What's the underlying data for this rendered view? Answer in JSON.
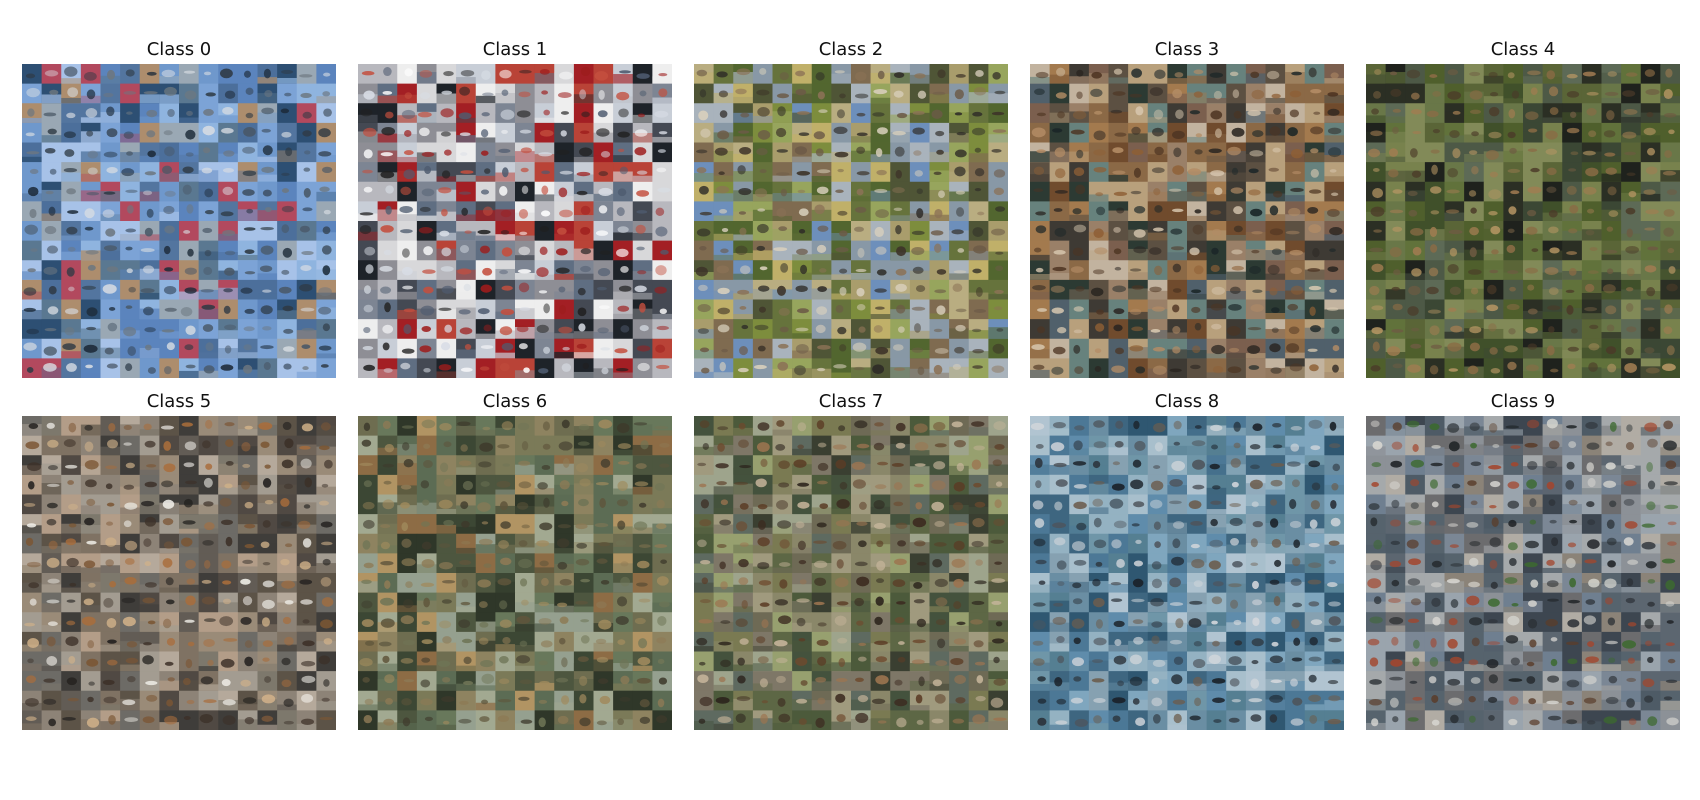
{
  "figure": {
    "panels": [
      {
        "title": "Class 0",
        "palette": [
          "#5b84bd",
          "#6f98cc",
          "#8fb4df",
          "#9aa8b4",
          "#4c6f9b",
          "#7ca3d6",
          "#5a7891",
          "#a7c2e8",
          "#53759f",
          "#2d4f73",
          "#ad8d6d",
          "#b2495e"
        ],
        "subject_palette": [
          "#1d2b39",
          "#2f3a44",
          "#d7dce2",
          "#495867",
          "#6d7780"
        ]
      },
      {
        "title": "Class 1",
        "palette": [
          "#d8d8da",
          "#eeeeee",
          "#b8b8be",
          "#8e8e95",
          "#5f6e82",
          "#a31f24",
          "#444953",
          "#b94337",
          "#c8ced7",
          "#1e2329",
          "#7d8593"
        ],
        "subject_palette": [
          "#ffffff",
          "#202020",
          "#9d1c1c",
          "#4f5c70",
          "#c44f3e",
          "#d8dde5"
        ]
      },
      {
        "title": "Class 2",
        "palette": [
          "#7d8d3d",
          "#97a55d",
          "#8898a6",
          "#6d8fbb",
          "#a99d6c",
          "#66733c",
          "#b9ad81",
          "#52662f",
          "#a9b3bc",
          "#c0b069",
          "#4f5536",
          "#7f6b50"
        ],
        "subject_palette": [
          "#3d3328",
          "#6c5a47",
          "#8b7256",
          "#2e2b27",
          "#d9d0bd"
        ]
      },
      {
        "title": "Class 3",
        "palette": [
          "#5c5042",
          "#8b6946",
          "#3e3a34",
          "#67827d",
          "#7b5f4e",
          "#a37a4e",
          "#50606b",
          "#b8a07c",
          "#2c3a33",
          "#9a8068",
          "#704b2d",
          "#c2b39f"
        ],
        "subject_palette": [
          "#2a2521",
          "#d9c9b1",
          "#8e5f35",
          "#1a2527",
          "#b38c65",
          "#4d3422"
        ]
      },
      {
        "title": "Class 4",
        "palette": [
          "#4f5f2c",
          "#61723b",
          "#40502a",
          "#697748",
          "#5a6537",
          "#1f221d",
          "#4d5946",
          "#78824d",
          "#3b4734",
          "#5d6a56",
          "#2b2f24",
          "#828a58"
        ],
        "subject_palette": [
          "#8a6b45",
          "#b49563",
          "#4b3a28",
          "#a17c51",
          "#6e5b42"
        ]
      },
      {
        "title": "Class 5",
        "palette": [
          "#8d8377",
          "#625c55",
          "#a39c91",
          "#504943",
          "#7d786c",
          "#b5a99b",
          "#5c5347",
          "#9a8b78",
          "#6d6b66",
          "#3f3d3a",
          "#b39d88",
          "#7f7263"
        ],
        "subject_palette": [
          "#d0b189",
          "#3c3028",
          "#7b5634",
          "#f0eee8",
          "#a96d3b",
          "#22201e"
        ]
      },
      {
        "title": "Class 6",
        "palette": [
          "#4d563f",
          "#6e6d50",
          "#7b7a58",
          "#5c6c54",
          "#8e8360",
          "#3c4734",
          "#95a08f",
          "#b19463",
          "#68785b",
          "#2f3729",
          "#8d6c45",
          "#a2a991"
        ],
        "subject_palette": [
          "#5f553b",
          "#8d7a55",
          "#3e3a2c",
          "#6f7556",
          "#a08a5d"
        ]
      },
      {
        "title": "Class 7",
        "palette": [
          "#7a7a52",
          "#5d6745",
          "#8a8769",
          "#4c5a3b",
          "#a09a7e",
          "#6e6a55",
          "#44523d",
          "#97a06f",
          "#7e7767",
          "#5e6a60",
          "#9ea48c",
          "#3a3f31"
        ],
        "subject_palette": [
          "#6e4a2e",
          "#3b2a20",
          "#9c7450",
          "#2a221b",
          "#c5b49a",
          "#5b3c25"
        ]
      },
      {
        "title": "Class 8",
        "palette": [
          "#5f8cab",
          "#7fa6be",
          "#4c7896",
          "#94b2c2",
          "#6f96a8",
          "#3e6680",
          "#86a1b1",
          "#a8bfcc",
          "#557f92",
          "#6a8ea3",
          "#2f5771",
          "#b1c4d1"
        ],
        "subject_palette": [
          "#2a3037",
          "#4e545b",
          "#d5d8dc",
          "#6c5d4e",
          "#1a2027"
        ]
      },
      {
        "title": "Class 9",
        "palette": [
          "#7b8795",
          "#5c6670",
          "#9aa4ad",
          "#6c6c6e",
          "#8b8378",
          "#4e5b66",
          "#a5a9ab",
          "#6f7f90",
          "#8c9197",
          "#56636d",
          "#b1aca4",
          "#3d4650"
        ],
        "subject_palette": [
          "#2b3035",
          "#5a3d2b",
          "#a3462d",
          "#3c6a2f",
          "#1f2326",
          "#d8d7d2"
        ]
      }
    ],
    "tiles_per_side": 16
  }
}
